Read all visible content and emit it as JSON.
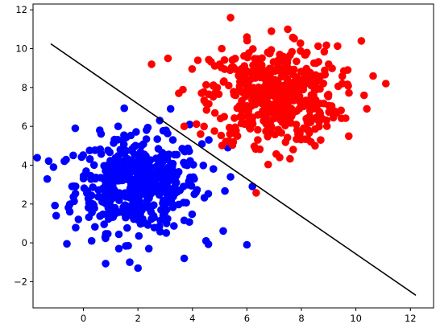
{
  "chart_data": {
    "type": "scatter",
    "title": "",
    "xlabel": "",
    "ylabel": "",
    "xlim": [
      -1.85,
      12.85
    ],
    "ylim": [
      -3.35,
      12.3
    ],
    "grid": false,
    "legend": "none",
    "x_ticks": [
      0,
      2,
      4,
      6,
      8,
      10,
      12
    ],
    "y_ticks": [
      -2,
      0,
      2,
      4,
      6,
      8,
      10,
      12
    ],
    "series": [
      {
        "color": "#ff0000",
        "cluster": {
          "center": [
            7.0,
            7.6
          ],
          "spread": [
            1.15,
            1.25
          ],
          "count": 480
        },
        "points": [
          [
            11.1,
            8.2
          ],
          [
            10.2,
            10.4
          ],
          [
            2.5,
            9.2
          ],
          [
            5.4,
            11.6
          ],
          [
            10.3,
            7.6
          ],
          [
            9.7,
            8.9
          ],
          [
            9.3,
            6.7
          ],
          [
            3.7,
            6.0
          ],
          [
            4.3,
            5.6
          ],
          [
            5.5,
            5.2
          ],
          [
            4.5,
            7.2
          ],
          [
            7.2,
            4.4
          ],
          [
            8.5,
            5.0
          ],
          [
            3.5,
            7.7
          ],
          [
            4.2,
            9.4
          ],
          [
            6.0,
            10.6
          ],
          [
            7.5,
            11.0
          ],
          [
            8.2,
            9.8
          ],
          [
            9.0,
            9.2
          ],
          [
            5.0,
            9.2
          ],
          [
            6.4,
            5.3
          ],
          [
            3.1,
            9.5
          ],
          [
            10.4,
            6.9
          ],
          [
            9.5,
            8.2
          ],
          [
            6.9,
            10.9
          ]
        ]
      },
      {
        "color": "#0000ff",
        "cluster": {
          "center": [
            2.0,
            3.0
          ],
          "spread": [
            1.15,
            1.2
          ],
          "count": 480
        },
        "points": [
          [
            -1.1,
            3.9
          ],
          [
            -1.0,
            1.4
          ],
          [
            -0.3,
            5.9
          ],
          [
            1.7,
            -1.0
          ],
          [
            2.0,
            -1.3
          ],
          [
            3.7,
            -0.8
          ],
          [
            6.0,
            -0.1
          ],
          [
            6.2,
            2.9
          ],
          [
            5.3,
            4.9
          ],
          [
            3.9,
            6.1
          ],
          [
            3.2,
            6.9
          ],
          [
            2.8,
            6.3
          ],
          [
            0.6,
            5.8
          ],
          [
            -0.7,
            4.2
          ],
          [
            -0.5,
            1.6
          ],
          [
            0.3,
            0.1
          ],
          [
            1.3,
            -0.3
          ],
          [
            4.5,
            0.1
          ],
          [
            5.4,
            3.4
          ],
          [
            4.6,
            5.3
          ],
          [
            2.4,
            -0.3
          ],
          [
            0.8,
            0.3
          ]
        ]
      }
    ],
    "line": {
      "color": "#000000",
      "x": [
        -1.2,
        12.2
      ],
      "y": [
        10.25,
        -2.7
      ]
    }
  }
}
